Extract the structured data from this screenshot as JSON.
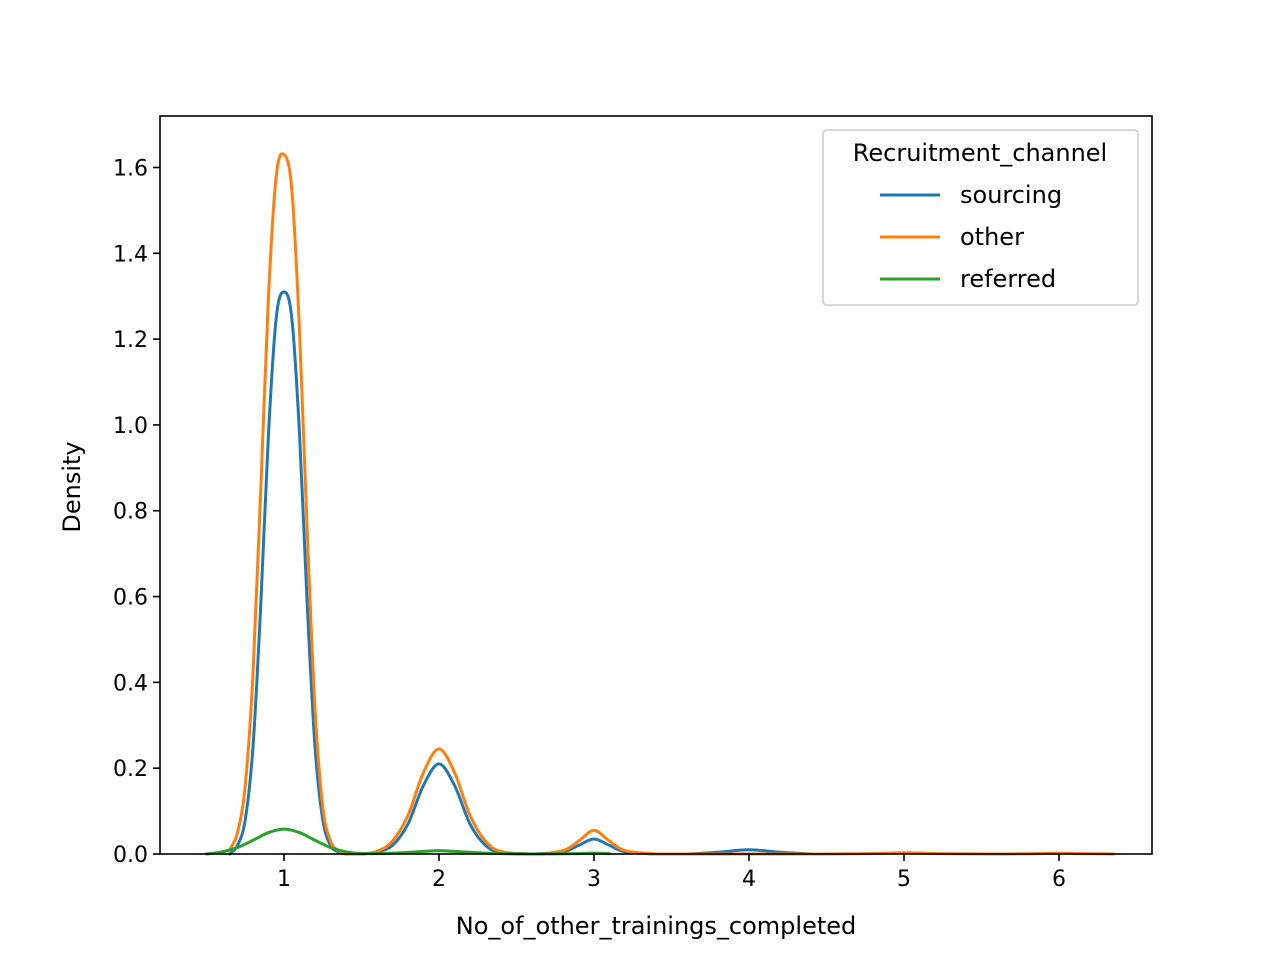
{
  "chart_data": {
    "type": "line",
    "subtype": "kde",
    "title": "",
    "xlabel": "No_of_other_trainings_completed",
    "ylabel": "Density",
    "xlim": [
      0.2,
      6.6
    ],
    "ylim": [
      0,
      1.72
    ],
    "xticks": [
      1,
      2,
      3,
      4,
      5,
      6
    ],
    "xtick_labels": [
      "1",
      "2",
      "3",
      "4",
      "5",
      "6"
    ],
    "yticks": [
      0,
      0.2,
      0.4,
      0.6,
      0.8,
      1.0,
      1.2,
      1.4,
      1.6
    ],
    "ytick_labels": [
      "0.0",
      "0.2",
      "0.4",
      "0.6",
      "0.8",
      "1.0",
      "1.2",
      "1.4",
      "1.6"
    ],
    "grid": false,
    "legend": {
      "title": "Recruitment_channel",
      "placement": "top-right"
    },
    "series": [
      {
        "name": "sourcing",
        "color": "#1f77b4",
        "x": [
          0.65,
          0.7,
          0.75,
          0.8,
          0.85,
          0.9,
          0.95,
          1.0,
          1.05,
          1.1,
          1.15,
          1.2,
          1.25,
          1.3,
          1.35,
          1.4,
          1.5,
          1.6,
          1.7,
          1.8,
          1.9,
          2.0,
          2.1,
          2.2,
          2.3,
          2.4,
          2.6,
          2.8,
          2.9,
          3.0,
          3.1,
          3.2,
          3.4,
          3.6,
          3.8,
          4.0,
          4.2,
          4.4
        ],
        "values": [
          0.0,
          0.02,
          0.08,
          0.25,
          0.58,
          0.98,
          1.25,
          1.31,
          1.25,
          0.98,
          0.58,
          0.25,
          0.08,
          0.02,
          0.005,
          0.0,
          0.0,
          0.005,
          0.02,
          0.07,
          0.16,
          0.21,
          0.16,
          0.07,
          0.02,
          0.004,
          0.0,
          0.005,
          0.02,
          0.035,
          0.02,
          0.005,
          0.0,
          0.0,
          0.004,
          0.01,
          0.004,
          0.0
        ]
      },
      {
        "name": "other",
        "color": "#ff7f0e",
        "x": [
          0.65,
          0.7,
          0.75,
          0.8,
          0.85,
          0.9,
          0.95,
          1.0,
          1.05,
          1.1,
          1.15,
          1.2,
          1.25,
          1.3,
          1.35,
          1.4,
          1.5,
          1.6,
          1.7,
          1.8,
          1.9,
          2.0,
          2.1,
          2.2,
          2.3,
          2.4,
          2.6,
          2.8,
          2.9,
          3.0,
          3.1,
          3.2,
          3.4,
          3.6,
          4.0,
          4.5,
          4.8,
          5.0,
          5.2,
          5.6,
          5.9,
          6.0,
          6.1,
          6.35
        ],
        "values": [
          0.01,
          0.05,
          0.16,
          0.42,
          0.85,
          1.3,
          1.58,
          1.63,
          1.55,
          1.22,
          0.75,
          0.34,
          0.11,
          0.03,
          0.008,
          0.0,
          0.0,
          0.006,
          0.03,
          0.09,
          0.19,
          0.245,
          0.19,
          0.09,
          0.03,
          0.006,
          0.0,
          0.008,
          0.03,
          0.055,
          0.03,
          0.008,
          0.0,
          0.0,
          0.0,
          0.0,
          0.001,
          0.003,
          0.001,
          0.0,
          0.001,
          0.002,
          0.001,
          0.0
        ]
      },
      {
        "name": "referred",
        "color": "#2ca02c",
        "x": [
          0.5,
          0.6,
          0.7,
          0.8,
          0.9,
          1.0,
          1.1,
          1.2,
          1.3,
          1.4,
          1.5,
          1.7,
          1.9,
          2.0,
          2.1,
          2.3,
          2.6,
          2.9,
          3.0,
          3.1
        ],
        "values": [
          0.0,
          0.005,
          0.015,
          0.032,
          0.05,
          0.058,
          0.05,
          0.032,
          0.015,
          0.005,
          0.001,
          0.002,
          0.006,
          0.008,
          0.006,
          0.002,
          0.0,
          0.001,
          0.002,
          0.001
        ]
      }
    ]
  }
}
